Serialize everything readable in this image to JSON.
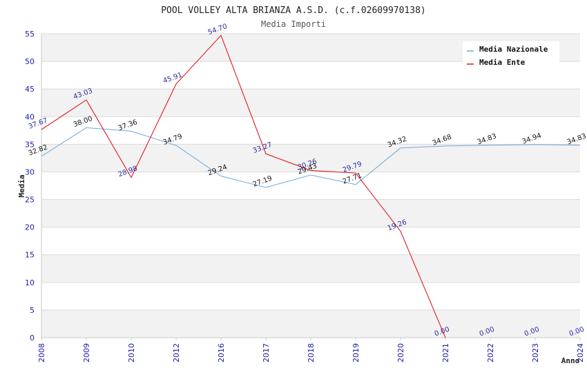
{
  "chart_data": {
    "type": "line",
    "title": "POOL VOLLEY ALTA BRIANZA A.S.D. (c.f.02609970138)",
    "subtitle": "Media Importi",
    "xlabel": "Anno",
    "ylabel": "Media",
    "ylim": [
      0,
      55
    ],
    "yticks": [
      0,
      5,
      10,
      15,
      20,
      25,
      30,
      35,
      40,
      45,
      50,
      55
    ],
    "categories": [
      "2008",
      "2009",
      "2010",
      "2012",
      "2016",
      "2017",
      "2018",
      "2019",
      "2020",
      "2021",
      "2022",
      "2023",
      "2024"
    ],
    "series": [
      {
        "name": "Media Nazionale",
        "color": "#6fa8dc",
        "values": [
          32.82,
          38.0,
          37.36,
          34.79,
          29.24,
          27.19,
          29.43,
          27.71,
          34.32,
          34.68,
          34.83,
          34.94,
          34.83
        ],
        "labels": [
          "32.82",
          "38.00",
          "37.36",
          "34.79",
          "29.24",
          "27.19",
          "29.43",
          "27.71",
          "34.32",
          "34.68",
          "34.83",
          "34.94",
          "34.83"
        ]
      },
      {
        "name": "Media Ente",
        "color": "#e0191e",
        "values": [
          37.67,
          43.03,
          28.98,
          45.91,
          54.7,
          33.27,
          30.26,
          29.79,
          19.26,
          0.0,
          0.0,
          0.0,
          0.0
        ],
        "labels": [
          "37.67",
          "43.03",
          "28.98",
          "45.91",
          "54.70",
          "33.27",
          "30.26",
          "29.79",
          "19.26",
          "0.00",
          "0.00",
          "0.00",
          "0.00"
        ],
        "line_points": 10
      }
    ],
    "grid": true,
    "legend_position": "top-right",
    "colors": {
      "band": "#f2f2f2",
      "grid": "#d9d9d9",
      "axis": "#c8c8c8",
      "tick_text": "#1a1aa6"
    }
  }
}
